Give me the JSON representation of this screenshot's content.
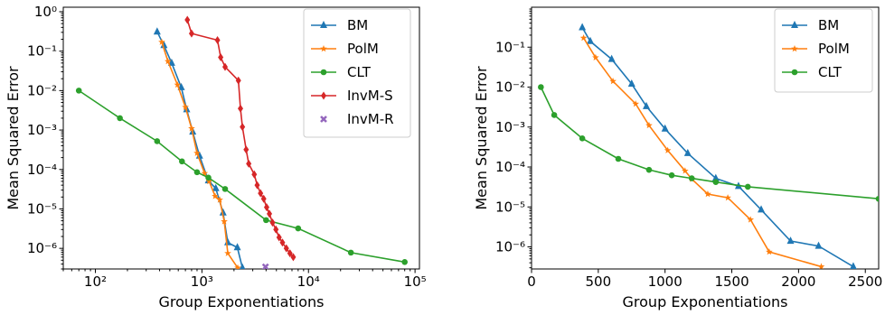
{
  "chart_data": [
    {
      "type": "line",
      "x_scale": "log",
      "y_scale": "log",
      "xlim": [
        50,
        110000
      ],
      "ylim": [
        3e-07,
        1.3
      ],
      "xlabel": "Group Exponentiations",
      "ylabel": "Mean Squared Error",
      "legend_position": "top-right",
      "x_ticks": [
        {
          "value": 100,
          "label": "10²"
        },
        {
          "value": 1000,
          "label": "10³"
        },
        {
          "value": 10000,
          "label": "10⁴"
        },
        {
          "value": 100000,
          "label": "10⁵"
        }
      ],
      "y_ticks": [
        {
          "value": 1e-06,
          "label": "10⁻⁶"
        },
        {
          "value": 1e-05,
          "label": "10⁻⁵"
        },
        {
          "value": 0.0001,
          "label": "10⁻⁴"
        },
        {
          "value": 0.001,
          "label": "10⁻³"
        },
        {
          "value": 0.01,
          "label": "10⁻²"
        },
        {
          "value": 0.1,
          "label": "10⁻¹"
        },
        {
          "value": 1,
          "label": "10⁰"
        }
      ],
      "series": [
        {
          "name": "BM",
          "color": "#1f77b4",
          "marker": "triangle",
          "line": true,
          "points": [
            [
              380,
              0.31
            ],
            [
              440,
              0.14
            ],
            [
              520,
              0.05
            ],
            [
              640,
              0.012
            ],
            [
              720,
              0.0033
            ],
            [
              820,
              0.0009
            ],
            [
              950,
              0.00022
            ],
            [
              1150,
              5.2e-05
            ],
            [
              1350,
              3.3e-05
            ],
            [
              1580,
              8e-06
            ],
            [
              1750,
              1.4e-06
            ],
            [
              2150,
              1.05e-06
            ],
            [
              2400,
              3.2e-07
            ]
          ]
        },
        {
          "name": "PolM",
          "color": "#ff7f0e",
          "marker": "star",
          "line": true,
          "points": [
            [
              420,
              0.17
            ],
            [
              480,
              0.055
            ],
            [
              590,
              0.014
            ],
            [
              700,
              0.0038
            ],
            [
              800,
              0.0011
            ],
            [
              900,
              0.00026
            ],
            [
              1060,
              8e-05
            ],
            [
              1170,
              5e-05
            ],
            [
              1330,
              2.1e-05
            ],
            [
              1470,
              1.7e-05
            ],
            [
              1620,
              4.8e-06
            ],
            [
              1750,
              7.5e-07
            ],
            [
              2170,
              3.2e-07
            ]
          ]
        },
        {
          "name": "CLT",
          "color": "#2ca02c",
          "marker": "circle",
          "line": true,
          "points": [
            [
              70,
              0.01
            ],
            [
              170,
              0.002
            ],
            [
              380,
              0.00052
            ],
            [
              650,
              0.00016
            ],
            [
              900,
              8.5e-05
            ],
            [
              1150,
              6.2e-05
            ],
            [
              1650,
              3.2e-05
            ],
            [
              4000,
              5.2e-06
            ],
            [
              8000,
              3.2e-06
            ],
            [
              25000,
              7.8e-07
            ],
            [
              80000,
              4.5e-07
            ]
          ]
        },
        {
          "name": "InvM-S",
          "color": "#d62728",
          "marker": "diamond",
          "line": true,
          "points": [
            [
              730,
              0.62
            ],
            [
              800,
              0.28
            ],
            [
              1400,
              0.19
            ],
            [
              1500,
              0.07
            ],
            [
              1650,
              0.04
            ],
            [
              2200,
              0.018
            ],
            [
              2300,
              0.0035
            ],
            [
              2400,
              0.0012
            ],
            [
              2600,
              0.00032
            ],
            [
              2750,
              0.00014
            ],
            [
              3100,
              7.5e-05
            ],
            [
              3300,
              4e-05
            ],
            [
              3550,
              2.5e-05
            ],
            [
              3800,
              1.8e-05
            ],
            [
              4050,
              1.1e-05
            ],
            [
              4300,
              7.5e-06
            ],
            [
              4600,
              4.5e-06
            ],
            [
              4950,
              3e-06
            ],
            [
              5300,
              1.9e-06
            ],
            [
              5700,
              1.4e-06
            ],
            [
              6200,
              1e-06
            ],
            [
              6700,
              7.5e-07
            ],
            [
              7200,
              6e-07
            ]
          ]
        },
        {
          "name": "InvM-R",
          "color": "#9467bd",
          "marker": "x",
          "line": false,
          "points": [
            [
              3950,
              3.4e-07
            ]
          ]
        }
      ]
    },
    {
      "type": "line",
      "x_scale": "linear",
      "y_scale": "log",
      "xlim": [
        0,
        2600
      ],
      "ylim": [
        2.8e-07,
        1.0
      ],
      "xlabel": "Group Exponentiations",
      "ylabel": "Mean Squared Error",
      "legend_position": "top-right",
      "x_ticks": [
        {
          "value": 0,
          "label": "0"
        },
        {
          "value": 500,
          "label": "500"
        },
        {
          "value": 1000,
          "label": "1000"
        },
        {
          "value": 1500,
          "label": "1500"
        },
        {
          "value": 2000,
          "label": "2000"
        },
        {
          "value": 2500,
          "label": "2500"
        }
      ],
      "y_ticks": [
        {
          "value": 1e-06,
          "label": "10⁻⁶"
        },
        {
          "value": 1e-05,
          "label": "10⁻⁵"
        },
        {
          "value": 0.0001,
          "label": "10⁻⁴"
        },
        {
          "value": 0.001,
          "label": "10⁻³"
        },
        {
          "value": 0.01,
          "label": "10⁻²"
        },
        {
          "value": 0.1,
          "label": "10⁻¹"
        }
      ],
      "series": [
        {
          "name": "BM",
          "color": "#1f77b4",
          "marker": "triangle",
          "line": true,
          "points": [
            [
              380,
              0.31
            ],
            [
              440,
              0.14
            ],
            [
              600,
              0.05
            ],
            [
              750,
              0.012
            ],
            [
              860,
              0.0033
            ],
            [
              1000,
              0.0009
            ],
            [
              1170,
              0.00022
            ],
            [
              1380,
              5.2e-05
            ],
            [
              1550,
              3.3e-05
            ],
            [
              1720,
              8.5e-06
            ],
            [
              1940,
              1.4e-06
            ],
            [
              2150,
              1.05e-06
            ],
            [
              2410,
              3.2e-07
            ]
          ]
        },
        {
          "name": "PolM",
          "color": "#ff7f0e",
          "marker": "star",
          "line": true,
          "points": [
            [
              390,
              0.17
            ],
            [
              480,
              0.055
            ],
            [
              610,
              0.014
            ],
            [
              780,
              0.0038
            ],
            [
              880,
              0.0011
            ],
            [
              1020,
              0.00026
            ],
            [
              1150,
              8e-05
            ],
            [
              1200,
              5e-05
            ],
            [
              1320,
              2.1e-05
            ],
            [
              1470,
              1.7e-05
            ],
            [
              1640,
              4.8e-06
            ],
            [
              1780,
              7.5e-07
            ],
            [
              2170,
              3.2e-07
            ]
          ]
        },
        {
          "name": "CLT",
          "color": "#2ca02c",
          "marker": "circle",
          "line": true,
          "points": [
            [
              70,
              0.01
            ],
            [
              170,
              0.002
            ],
            [
              380,
              0.00052
            ],
            [
              650,
              0.00016
            ],
            [
              880,
              8.5e-05
            ],
            [
              1050,
              6.2e-05
            ],
            [
              1200,
              5.2e-05
            ],
            [
              1380,
              4.2e-05
            ],
            [
              1620,
              3.2e-05
            ],
            [
              2600,
              1.6e-05
            ]
          ]
        }
      ]
    }
  ]
}
